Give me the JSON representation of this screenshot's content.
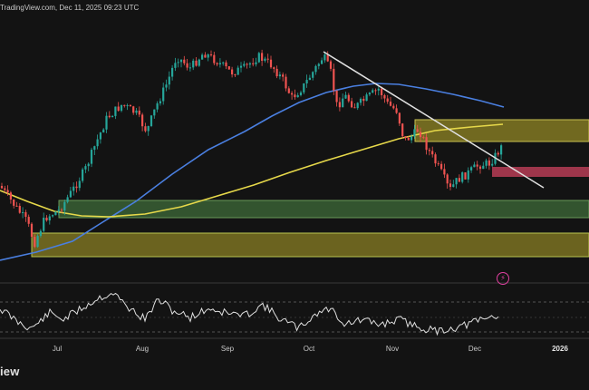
{
  "header": {
    "source_text": "TradingView.com, Dec 11, 2025 09:23 UTC"
  },
  "footer": {
    "logo_text": "iew"
  },
  "alert_icon": "lightning-bolt-icon",
  "x_axis": {
    "labels": [
      {
        "text": "Jul",
        "bold": false
      },
      {
        "text": "Aug",
        "bold": false
      },
      {
        "text": "Sep",
        "bold": false
      },
      {
        "text": "Oct",
        "bold": false
      },
      {
        "text": "Nov",
        "bold": false
      },
      {
        "text": "Dec",
        "bold": false
      },
      {
        "text": "2026",
        "bold": true
      }
    ]
  },
  "colors": {
    "background": "#131313",
    "candle_up": "#26a69a",
    "candle_down": "#ef5350",
    "ma_blue": "#4a7fe0",
    "ma_yellow": "#e6d84a",
    "trendline": "#e0e0e0",
    "rsi": "#e0e0e0",
    "zone_green": "#3f6b3a",
    "zone_yellow": "#8a7f24",
    "zone_red": "#c2405a"
  }
}
